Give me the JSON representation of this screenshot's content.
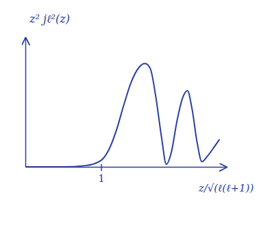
{
  "chart_data": {
    "type": "line",
    "y_label": "z² jℓ²(z)",
    "x_label": "z/√(ℓ(ℓ+1))",
    "x": [
      0,
      0.5,
      0.8,
      1.0,
      1.1,
      1.2,
      1.3,
      1.4,
      1.5,
      1.58,
      1.65,
      1.72,
      1.8,
      1.86,
      1.93,
      2.0,
      2.08,
      2.14,
      2.2,
      2.27,
      2.33,
      2.4,
      2.5,
      2.56
    ],
    "values": [
      0,
      0.0,
      0.01,
      0.05,
      0.13,
      0.28,
      0.48,
      0.66,
      0.77,
      0.8,
      0.76,
      0.55,
      0.22,
      0.02,
      0.12,
      0.35,
      0.54,
      0.59,
      0.45,
      0.18,
      0.04,
      0.08,
      0.16,
      0.21
    ],
    "color": "#2a3f9e",
    "xlim": [
      0,
      2.65
    ],
    "ylim": [
      0,
      1
    ],
    "xticks": [
      1
    ],
    "yticks": [],
    "tick_labels": "x",
    "grid": false
  }
}
